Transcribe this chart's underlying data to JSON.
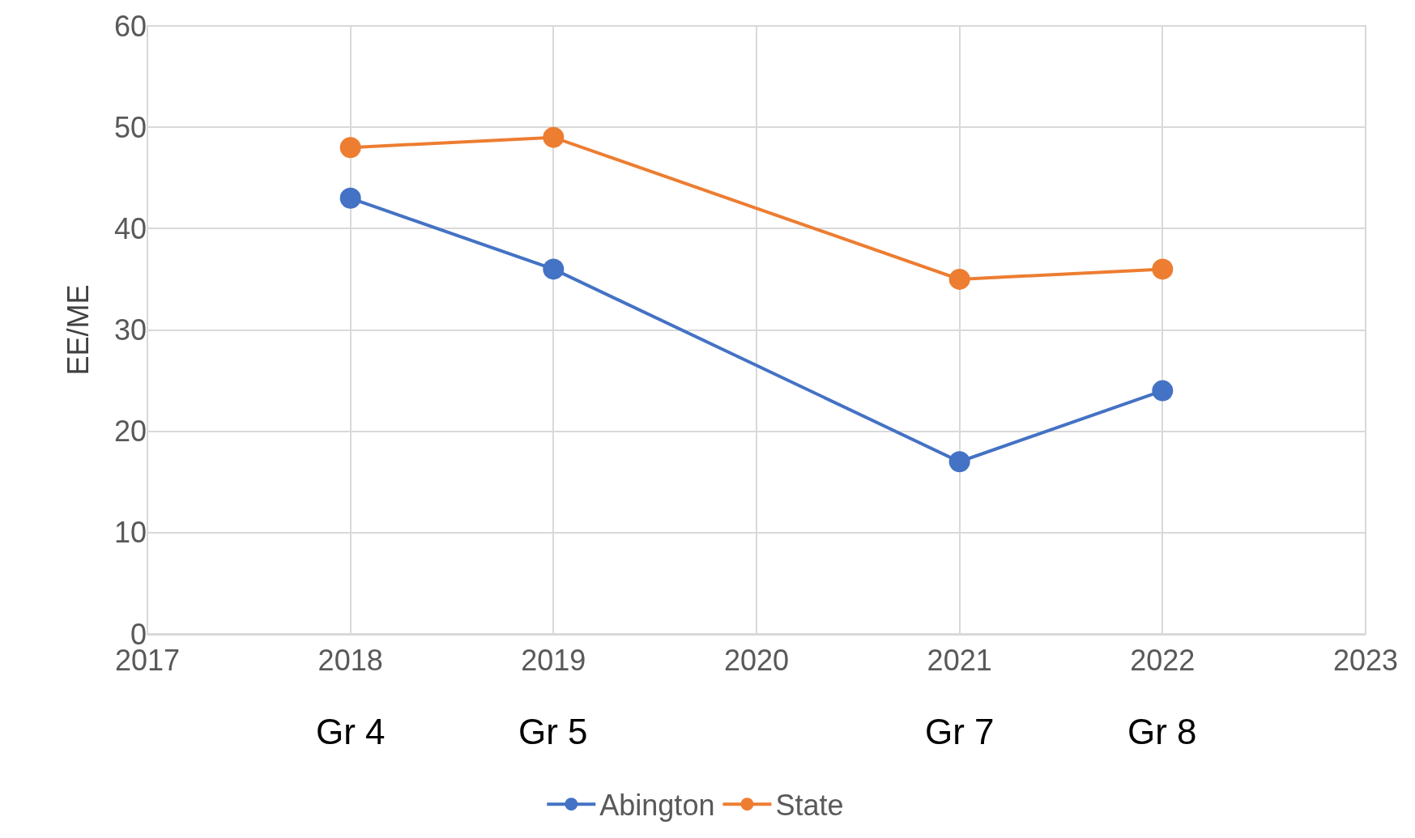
{
  "chart_data": {
    "type": "line",
    "ylabel": "EE/ME",
    "x": [
      2018,
      2019,
      2021,
      2022
    ],
    "series": [
      {
        "name": "Abington",
        "color": "#4472c4",
        "values": [
          43,
          36,
          17,
          24
        ]
      },
      {
        "name": "State",
        "color": "#ed7d31",
        "values": [
          48,
          49,
          35,
          36
        ]
      }
    ],
    "xlim": [
      2017,
      2023
    ],
    "xticks": [
      2017,
      2018,
      2019,
      2020,
      2021,
      2022,
      2023
    ],
    "ylim": [
      0,
      60
    ],
    "yticks": [
      0,
      10,
      20,
      30,
      40,
      50,
      60
    ],
    "grid": true,
    "legend": "bottom",
    "marker": "circle",
    "line_style": "solid",
    "annotations": [
      "Gr 4",
      "Gr 5",
      "Gr 7",
      "Gr 8"
    ]
  }
}
